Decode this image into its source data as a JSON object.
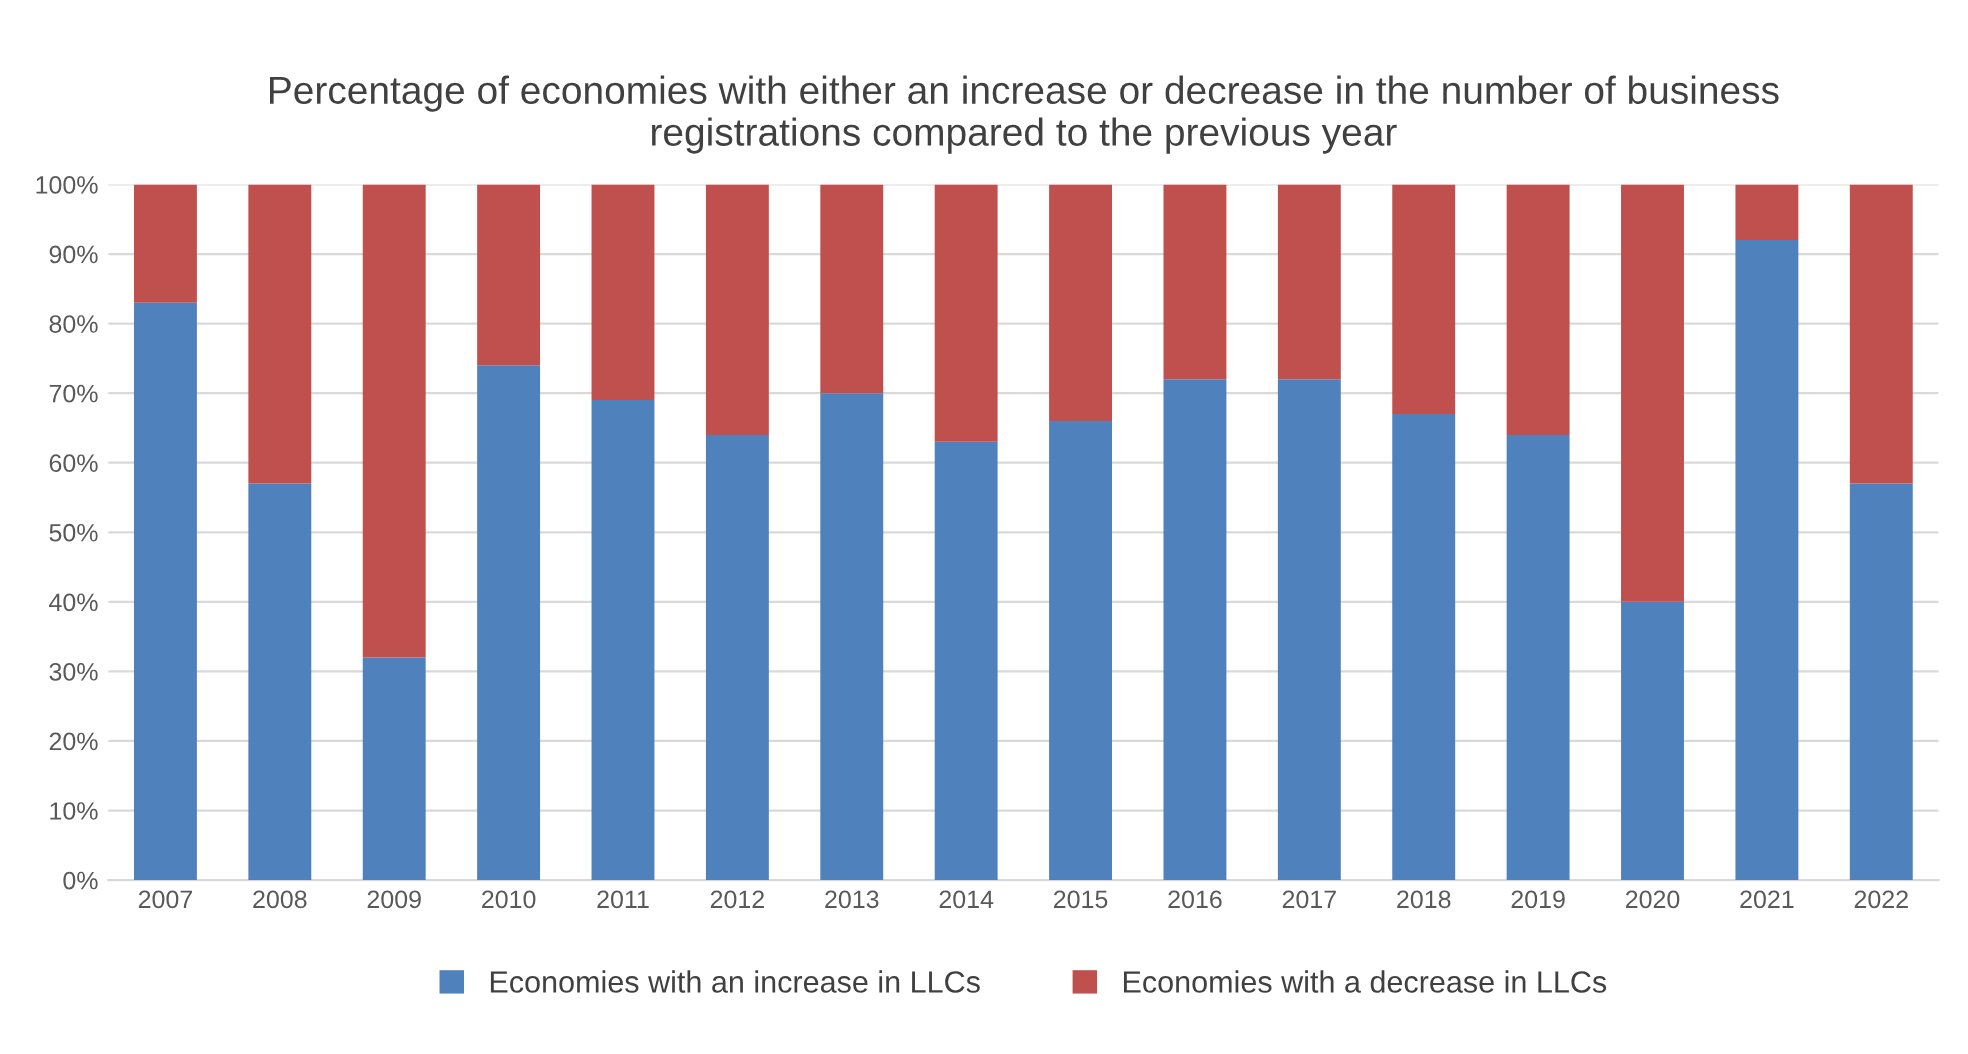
{
  "chart_data": {
    "type": "bar",
    "title": "Percentage of economies with either an increase or decrease in the number of business\nregistrations compared to the previous year",
    "categories": [
      "2007",
      "2008",
      "2009",
      "2010",
      "2011",
      "2012",
      "2013",
      "2014",
      "2015",
      "2016",
      "2017",
      "2018",
      "2019",
      "2020",
      "2021",
      "2022"
    ],
    "series": [
      {
        "name": "Economies with an increase in LLCs",
        "color": "#4f81bd",
        "values": [
          83,
          57,
          32,
          74,
          69,
          64,
          70,
          63,
          66,
          72,
          72,
          67,
          64,
          40,
          92,
          57
        ]
      },
      {
        "name": "Economies with a decrease in LLCs",
        "color": "#c0504d",
        "values": [
          17,
          43,
          68,
          26,
          31,
          36,
          30,
          37,
          34,
          28,
          28,
          33,
          36,
          60,
          8,
          43
        ]
      }
    ],
    "stacked": true,
    "ylim": [
      0,
      100
    ],
    "yticks": [
      {
        "value": 0,
        "label": "0%"
      },
      {
        "value": 10,
        "label": "10%"
      },
      {
        "value": 20,
        "label": "20%"
      },
      {
        "value": 30,
        "label": "30%"
      },
      {
        "value": 40,
        "label": "40%"
      },
      {
        "value": 50,
        "label": "50%"
      },
      {
        "value": 60,
        "label": "60%"
      },
      {
        "value": 70,
        "label": "70%"
      },
      {
        "value": 80,
        "label": "80%"
      },
      {
        "value": 90,
        "label": "90%"
      },
      {
        "value": 100,
        "label": "100%"
      }
    ],
    "grid": "y",
    "legend": "bottom"
  }
}
